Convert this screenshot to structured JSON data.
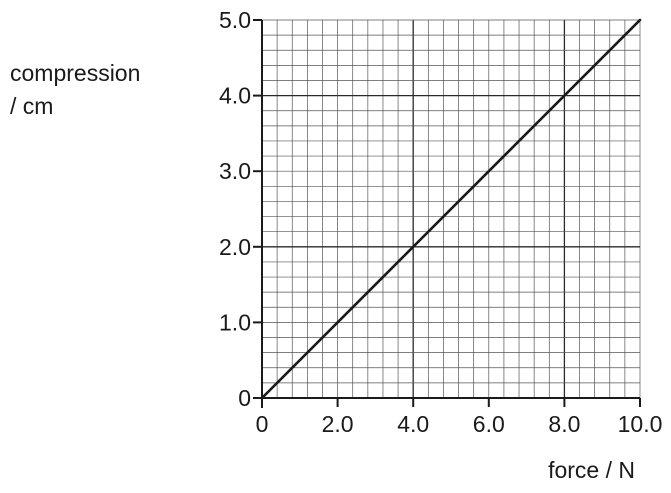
{
  "chart_data": {
    "type": "line",
    "title": "",
    "xlabel": "force / N",
    "ylabel_lines": [
      "compression",
      "/ cm"
    ],
    "xlim": [
      0,
      10
    ],
    "ylim": [
      0,
      5
    ],
    "x_ticks": [
      0,
      2,
      4,
      6,
      8,
      10
    ],
    "x_tick_labels": [
      "0",
      "2.0",
      "4.0",
      "6.0",
      "8.0",
      "10.0"
    ],
    "y_ticks": [
      0,
      1,
      2,
      3,
      4,
      5
    ],
    "y_tick_labels": [
      "0",
      "1.0",
      "2.0",
      "3.0",
      "4.0",
      "5.0"
    ],
    "grid": true,
    "grid_minor_step_x": 0.4,
    "grid_minor_step_y": 0.2,
    "grid_major_step_x": 4.0,
    "grid_major_step_y": 2.0,
    "series": [
      {
        "x": [
          0,
          10
        ],
        "y": [
          0,
          5
        ],
        "color": "#1a1a1a"
      }
    ]
  }
}
